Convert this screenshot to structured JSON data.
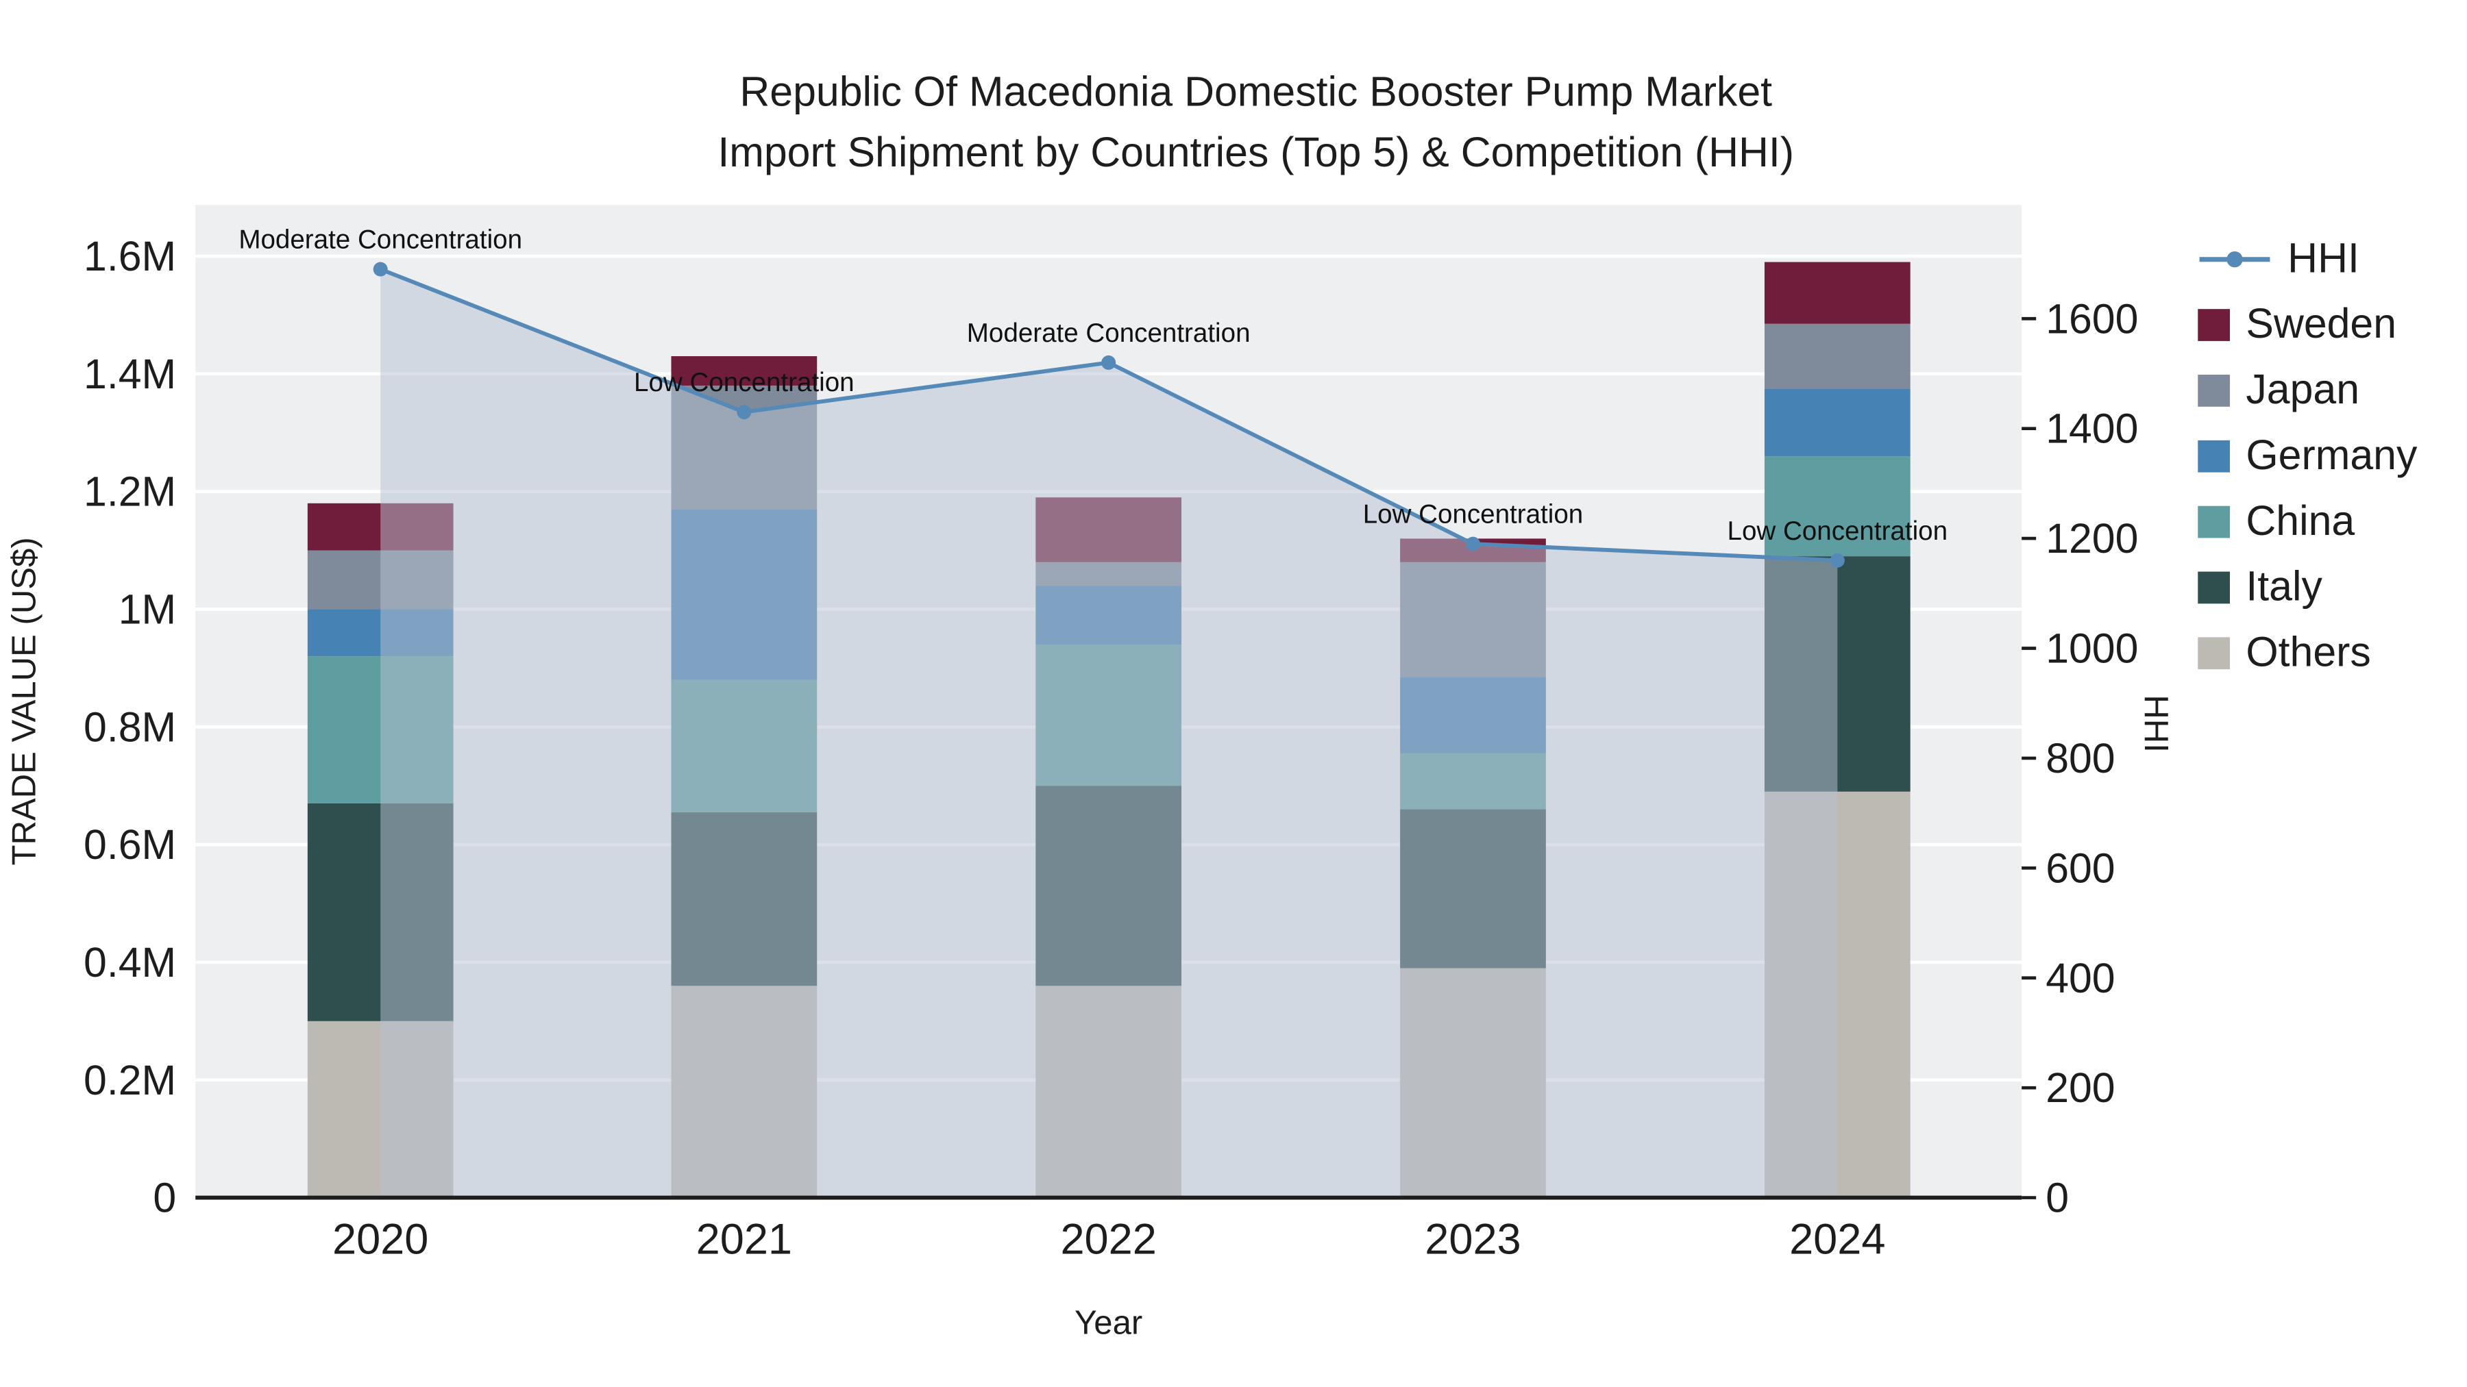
{
  "title": {
    "line1": "Republic Of Macedonia Domestic Booster Pump Market",
    "line2": "Import Shipment by Countries (Top 5) & Competition (HHI)"
  },
  "chart_data": {
    "type": "combo_stacked_bar_line",
    "title": "Republic Of Macedonia Domestic Booster Pump Market - Import Shipment by Countries (Top 5) & Competition (HHI)",
    "categories": [
      "2020",
      "2021",
      "2022",
      "2023",
      "2024"
    ],
    "xlabel": "Year",
    "bar_stack_order_bottom_to_top": [
      "Others",
      "Italy",
      "China",
      "Germany",
      "Japan",
      "Sweden"
    ],
    "series": [
      {
        "name": "Others",
        "color": "#bdb9b3",
        "values": [
          300000,
          360000,
          360000,
          390000,
          690000
        ]
      },
      {
        "name": "Italy",
        "color": "#2f4f4f",
        "values": [
          370000,
          295000,
          340000,
          270000,
          400000
        ]
      },
      {
        "name": "China",
        "color": "#5f9ea0",
        "values": [
          250000,
          225000,
          240000,
          95000,
          170000
        ]
      },
      {
        "name": "Germany",
        "color": "#4682b4",
        "values": [
          80000,
          290000,
          100000,
          130000,
          115000
        ]
      },
      {
        "name": "Japan",
        "color": "#7f8b9b",
        "values": [
          100000,
          210000,
          40000,
          195000,
          110000
        ]
      },
      {
        "name": "Sweden",
        "color": "#701d3b",
        "values": [
          80000,
          50000,
          110000,
          40000,
          105000
        ]
      }
    ],
    "line": {
      "name": "HHI",
      "color": "#5589b8",
      "fill": "rgba(183,194,210,0.5)",
      "values": [
        1690,
        1430,
        1520,
        1190,
        1160
      ]
    },
    "annotations": [
      "Moderate Concentration",
      "Low Concentration",
      "Moderate Concentration",
      "Low Concentration",
      "Low Concentration"
    ],
    "axis_left": {
      "label": "TRADE VALUE (US$)",
      "max": 1687000,
      "ticks": [
        {
          "value": 0,
          "label": "0"
        },
        {
          "value": 200000,
          "label": "0.2M"
        },
        {
          "value": 400000,
          "label": "0.4M"
        },
        {
          "value": 600000,
          "label": "0.6M"
        },
        {
          "value": 800000,
          "label": "0.8M"
        },
        {
          "value": 1000000,
          "label": "1M"
        },
        {
          "value": 1200000,
          "label": "1.2M"
        },
        {
          "value": 1400000,
          "label": "1.4M"
        },
        {
          "value": 1600000,
          "label": "1.6M"
        }
      ]
    },
    "axis_right": {
      "label": "HHI",
      "max": 1807,
      "ticks": [
        {
          "value": 0,
          "label": "0"
        },
        {
          "value": 200,
          "label": "200"
        },
        {
          "value": 400,
          "label": "400"
        },
        {
          "value": 600,
          "label": "600"
        },
        {
          "value": 800,
          "label": "800"
        },
        {
          "value": 1000,
          "label": "1000"
        },
        {
          "value": 1200,
          "label": "1200"
        },
        {
          "value": 1400,
          "label": "1400"
        },
        {
          "value": 1600,
          "label": "1600"
        }
      ]
    },
    "legend_order": [
      "HHI",
      "Sweden",
      "Japan",
      "Germany",
      "China",
      "Italy",
      "Others"
    ]
  }
}
